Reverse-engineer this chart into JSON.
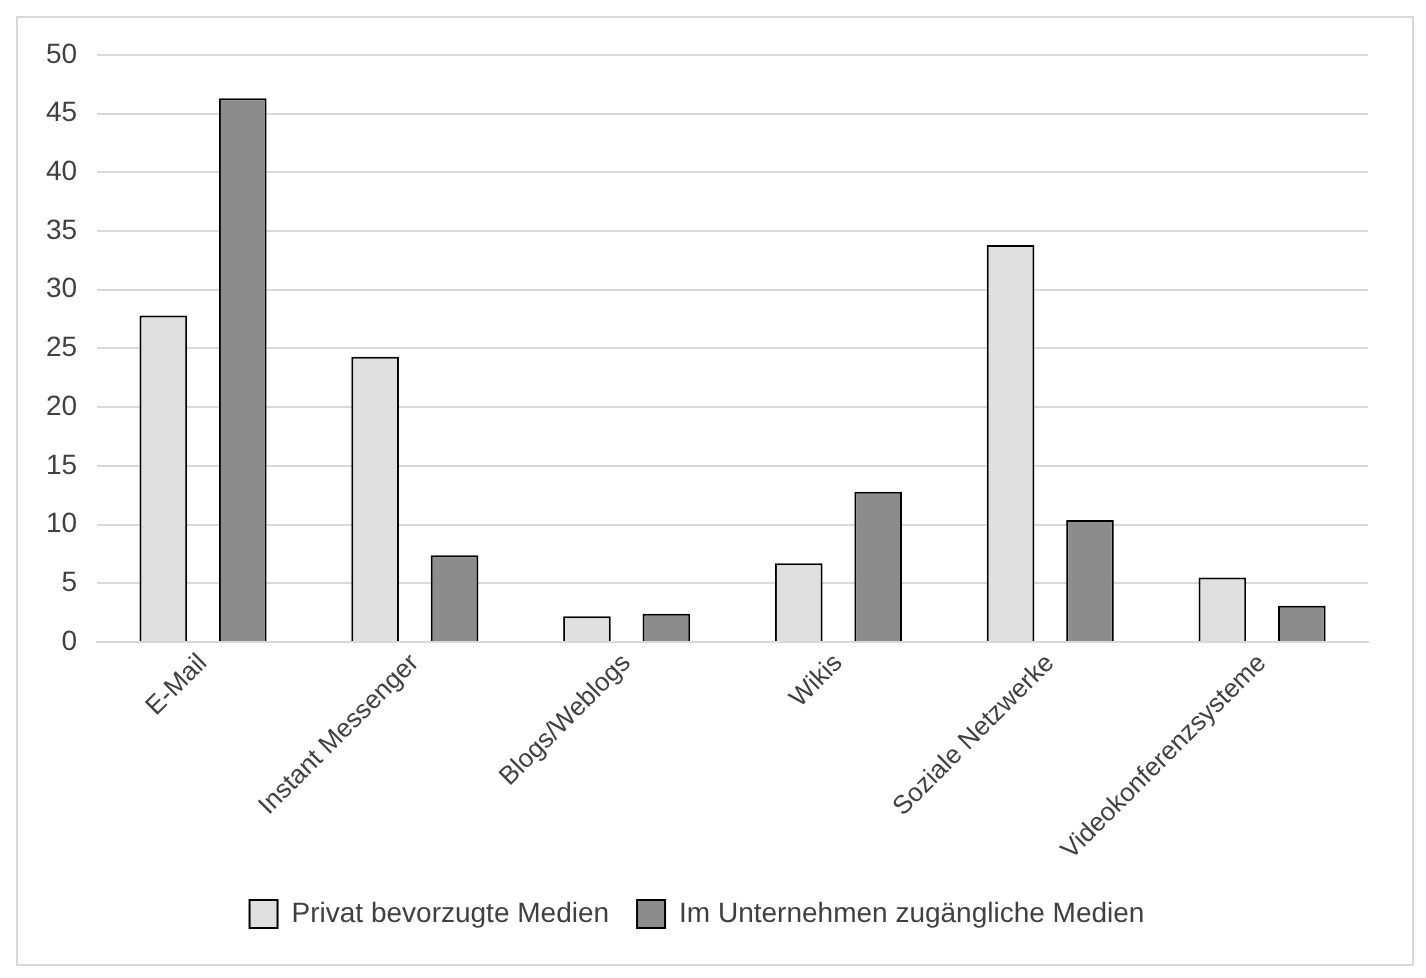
{
  "chart_data": {
    "type": "bar",
    "categories": [
      "E-Mail",
      "Instant Messenger",
      "Blogs/Weblogs",
      "Wikis",
      "Soziale Netzwerke",
      "Videokonferenzsysteme"
    ],
    "series": [
      {
        "name": "Privat bevorzugte Medien",
        "color": "#e0e0e0",
        "values": [
          27.8,
          24.3,
          2.2,
          6.7,
          33.8,
          5.5
        ]
      },
      {
        "name": "Im Unternehmen zugängliche Medien",
        "color": "#8c8c8c",
        "values": [
          46.3,
          7.4,
          2.4,
          12.8,
          10.4,
          3.1
        ]
      }
    ],
    "ylim": [
      0,
      50
    ],
    "yticks": [
      0,
      5,
      10,
      15,
      20,
      25,
      30,
      35,
      40,
      45,
      50
    ],
    "grid": "y",
    "legend": "bottom"
  }
}
